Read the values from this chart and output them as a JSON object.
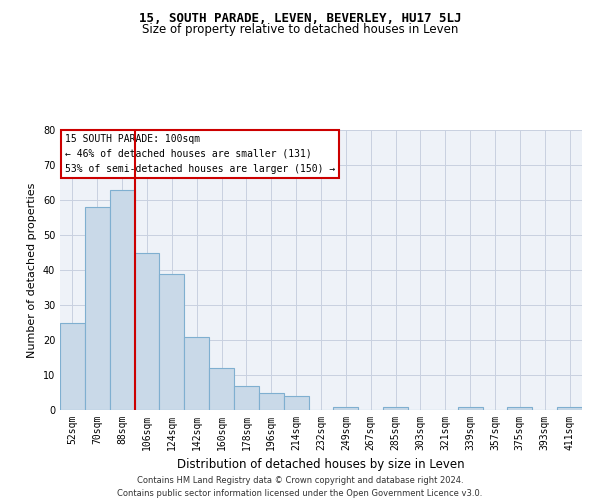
{
  "title": "15, SOUTH PARADE, LEVEN, BEVERLEY, HU17 5LJ",
  "subtitle": "Size of property relative to detached houses in Leven",
  "xlabel": "Distribution of detached houses by size in Leven",
  "ylabel": "Number of detached properties",
  "bar_values": [
    25,
    58,
    63,
    45,
    39,
    21,
    12,
    7,
    5,
    4,
    0,
    1,
    0,
    1,
    0,
    0,
    1,
    0,
    1,
    0,
    1
  ],
  "bar_labels": [
    "52sqm",
    "70sqm",
    "88sqm",
    "106sqm",
    "124sqm",
    "142sqm",
    "160sqm",
    "178sqm",
    "196sqm",
    "214sqm",
    "232sqm",
    "249sqm",
    "267sqm",
    "285sqm",
    "303sqm",
    "321sqm",
    "339sqm",
    "357sqm",
    "375sqm",
    "393sqm",
    "411sqm"
  ],
  "bar_color": "#c9d9e8",
  "bar_edge_color": "#7fafd0",
  "grid_color": "#c8d0e0",
  "background_color": "#eef2f8",
  "vline_x_idx": 2,
  "vline_color": "#cc0000",
  "annotation_text": "15 SOUTH PARADE: 100sqm\n← 46% of detached houses are smaller (131)\n53% of semi-detached houses are larger (150) →",
  "annotation_box_color": "white",
  "annotation_box_edge_color": "#cc0000",
  "footnote": "Contains HM Land Registry data © Crown copyright and database right 2024.\nContains public sector information licensed under the Open Government Licence v3.0.",
  "ylim": [
    0,
    80
  ],
  "yticks": [
    0,
    10,
    20,
    30,
    40,
    50,
    60,
    70,
    80
  ],
  "title_fontsize": 9,
  "subtitle_fontsize": 8.5,
  "xlabel_fontsize": 8.5,
  "ylabel_fontsize": 8,
  "tick_fontsize": 7,
  "annotation_fontsize": 7,
  "footnote_fontsize": 6
}
